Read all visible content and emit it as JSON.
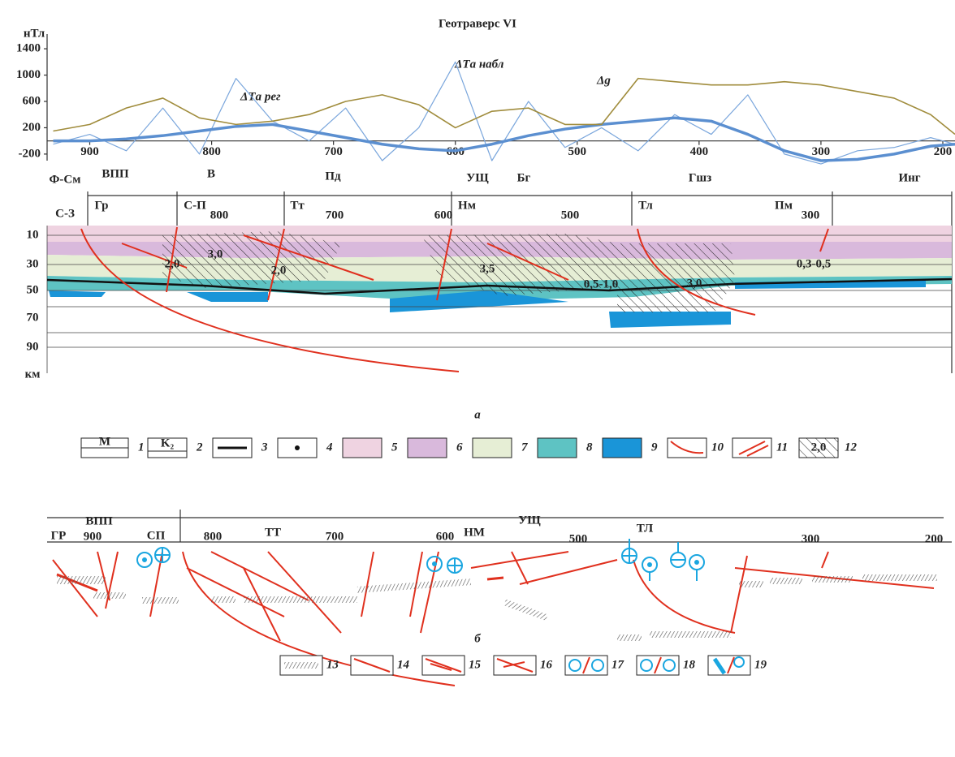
{
  "chart_data": {
    "type": "line",
    "title": "Геотраверс VI",
    "y_label": "нТл",
    "xlim": [
      935,
      190
    ],
    "ylim": [
      -300,
      1500
    ],
    "xticks": [
      900,
      800,
      700,
      600,
      500,
      400,
      300,
      200
    ],
    "yticks": [
      1400,
      1000,
      600,
      200,
      -200
    ],
    "x": [
      930,
      900,
      870,
      840,
      810,
      780,
      750,
      720,
      690,
      660,
      630,
      600,
      570,
      540,
      510,
      480,
      450,
      420,
      390,
      360,
      330,
      300,
      270,
      240,
      210,
      190
    ],
    "series": [
      {
        "name": "ΔTа набл",
        "color": "#7aa6dc",
        "values": [
          -50,
          100,
          -150,
          500,
          -200,
          950,
          300,
          0,
          500,
          -300,
          200,
          1200,
          -300,
          600,
          -100,
          200,
          -150,
          400,
          100,
          700,
          -200,
          -350,
          -150,
          -100,
          50,
          -50
        ]
      },
      {
        "name": "ΔTа рег",
        "color": "#5b8fd0",
        "values": [
          0,
          0,
          30,
          80,
          150,
          220,
          250,
          150,
          50,
          -50,
          -120,
          -150,
          -50,
          80,
          180,
          250,
          300,
          350,
          300,
          100,
          -150,
          -300,
          -280,
          -200,
          -80,
          -50
        ]
      },
      {
        "name": "Δg",
        "color": "#a08c3c",
        "values": [
          150,
          250,
          500,
          650,
          350,
          250,
          300,
          400,
          600,
          700,
          550,
          200,
          450,
          500,
          250,
          250,
          950,
          900,
          850,
          850,
          900,
          850,
          750,
          650,
          400,
          100
        ]
      }
    ],
    "annotations": [
      "Ф-См",
      "ВПП",
      "В",
      "Пд",
      "УЩ",
      "Бг",
      "Гшз",
      "Инг"
    ]
  },
  "section": {
    "side_label": "С-З",
    "blocks": [
      "Гр",
      "С-П",
      "Тт",
      "Нм",
      "Тл",
      "Пм"
    ],
    "distance_labels": [
      "800",
      "700",
      "600",
      "500",
      "300"
    ],
    "depth_ticks": [
      "10",
      "30",
      "50",
      "70",
      "90"
    ],
    "depth_unit": "км",
    "density": [
      "2,0",
      "3,0",
      "2,0",
      "3,5",
      "0,5-1,0",
      "3,0",
      "0,3-0,5"
    ],
    "caption": "а"
  },
  "legend_a": {
    "numbers": [
      "1",
      "2",
      "3",
      "4",
      "5",
      "6",
      "7",
      "8",
      "9",
      "10",
      "11",
      "12"
    ],
    "box_texts": [
      "М",
      "K₂",
      "2,0"
    ]
  },
  "lower": {
    "labels": [
      "ГР",
      "ВПП",
      "900",
      "СП",
      "800",
      "ТТ",
      "700",
      "600",
      "НМ",
      "УЩ",
      "500",
      "ТЛ",
      "300",
      "200"
    ],
    "caption": "б"
  },
  "legend_b": {
    "numbers": [
      "13",
      "14",
      "15",
      "16",
      "17",
      "18",
      "19"
    ]
  }
}
